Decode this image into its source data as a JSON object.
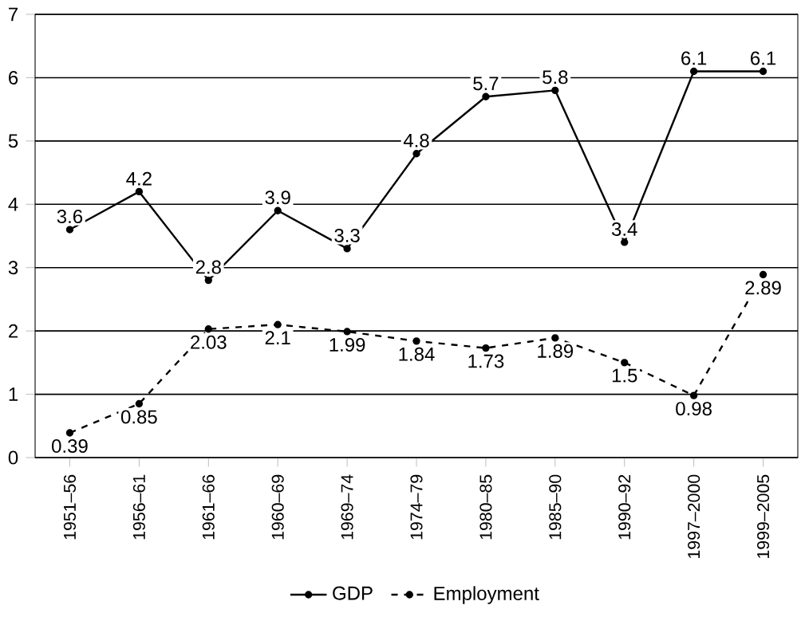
{
  "chart_data": {
    "type": "line",
    "categories": [
      "1951–56",
      "1956–61",
      "1961–66",
      "1960–69",
      "1969–74",
      "1974–79",
      "1980–85",
      "1985–90",
      "1990–92",
      "1997–2000",
      "1999–2005"
    ],
    "series": [
      {
        "name": "GDP",
        "color": "#000000",
        "line_style": "solid",
        "values": [
          3.6,
          4.2,
          2.8,
          3.9,
          3.3,
          4.8,
          5.7,
          5.8,
          3.4,
          6.1,
          6.1
        ]
      },
      {
        "name": "Employment",
        "color": "#000000",
        "line_style": "dashed",
        "values": [
          0.39,
          0.85,
          2.03,
          2.1,
          1.99,
          1.84,
          1.73,
          1.89,
          1.5,
          0.98,
          2.89
        ]
      }
    ],
    "ylim": [
      0,
      7
    ],
    "yticks": [
      0,
      1,
      2,
      3,
      4,
      5,
      6,
      7
    ],
    "grid": "y",
    "legend": "bottom",
    "marker": "circle",
    "data_labels": true
  }
}
